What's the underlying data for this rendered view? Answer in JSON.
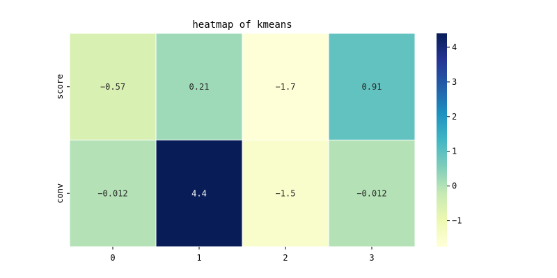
{
  "chart_data": {
    "type": "heatmap",
    "title": "heatmap of kmeans",
    "x_categories": [
      "0",
      "1",
      "2",
      "3"
    ],
    "y_categories": [
      "score",
      "conv"
    ],
    "values": [
      [
        -0.57,
        0.21,
        -1.7,
        0.91
      ],
      [
        -0.012,
        4.4,
        -1.5,
        -0.012
      ]
    ],
    "annotations": [
      [
        "-0.57",
        "0.21",
        "-1.7",
        "0.91"
      ],
      [
        "-0.012",
        "4.4",
        "-1.5",
        "-0.012"
      ]
    ],
    "colormap": "YlGnBu",
    "color_range": [
      -1.75,
      4.4
    ],
    "colorbar_ticks": [
      4,
      3,
      2,
      1,
      0,
      -1
    ],
    "colorbar_tick_labels": [
      "4",
      "3",
      "2",
      "1",
      "0",
      "−1"
    ],
    "cell_border_color": "#ffffff"
  }
}
